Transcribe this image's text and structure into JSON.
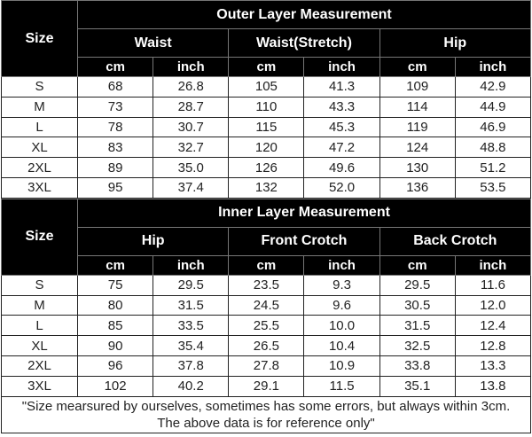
{
  "outer": {
    "title": "Outer Layer Measurement",
    "size_label": "Size",
    "groups": [
      "Waist",
      "Waist(Stretch)",
      "Hip"
    ],
    "units": [
      "cm",
      "inch",
      "cm",
      "inch",
      "cm",
      "inch"
    ],
    "rows": [
      [
        "S",
        "68",
        "26.8",
        "105",
        "41.3",
        "109",
        "42.9"
      ],
      [
        "M",
        "73",
        "28.7",
        "110",
        "43.3",
        "114",
        "44.9"
      ],
      [
        "L",
        "78",
        "30.7",
        "115",
        "45.3",
        "119",
        "46.9"
      ],
      [
        "XL",
        "83",
        "32.7",
        "120",
        "47.2",
        "124",
        "48.8"
      ],
      [
        "2XL",
        "89",
        "35.0",
        "126",
        "49.6",
        "130",
        "51.2"
      ],
      [
        "3XL",
        "95",
        "37.4",
        "132",
        "52.0",
        "136",
        "53.5"
      ]
    ]
  },
  "inner": {
    "title": "Inner Layer Measurement",
    "size_label": "Size",
    "groups": [
      "Hip",
      "Front Crotch",
      "Back Crotch"
    ],
    "units": [
      "cm",
      "inch",
      "cm",
      "inch",
      "cm",
      "inch"
    ],
    "rows": [
      [
        "S",
        "75",
        "29.5",
        "23.5",
        "9.3",
        "29.5",
        "11.6"
      ],
      [
        "M",
        "80",
        "31.5",
        "24.5",
        "9.6",
        "30.5",
        "12.0"
      ],
      [
        "L",
        "85",
        "33.5",
        "25.5",
        "10.0",
        "31.5",
        "12.4"
      ],
      [
        "XL",
        "90",
        "35.4",
        "26.5",
        "10.4",
        "32.5",
        "12.8"
      ],
      [
        "2XL",
        "96",
        "37.8",
        "27.8",
        "10.9",
        "33.8",
        "13.3"
      ],
      [
        "3XL",
        "102",
        "40.2",
        "29.1",
        "11.5",
        "35.1",
        "13.8"
      ]
    ]
  },
  "note": {
    "line1": "\"Size mearsured by ourselves, sometimes has some errors, but always within 3cm.",
    "line2": "The above data is for reference only\""
  },
  "colors": {
    "header_bg": "#000000",
    "header_text": "#ffffff",
    "cell_bg": "#ffffff"
  }
}
